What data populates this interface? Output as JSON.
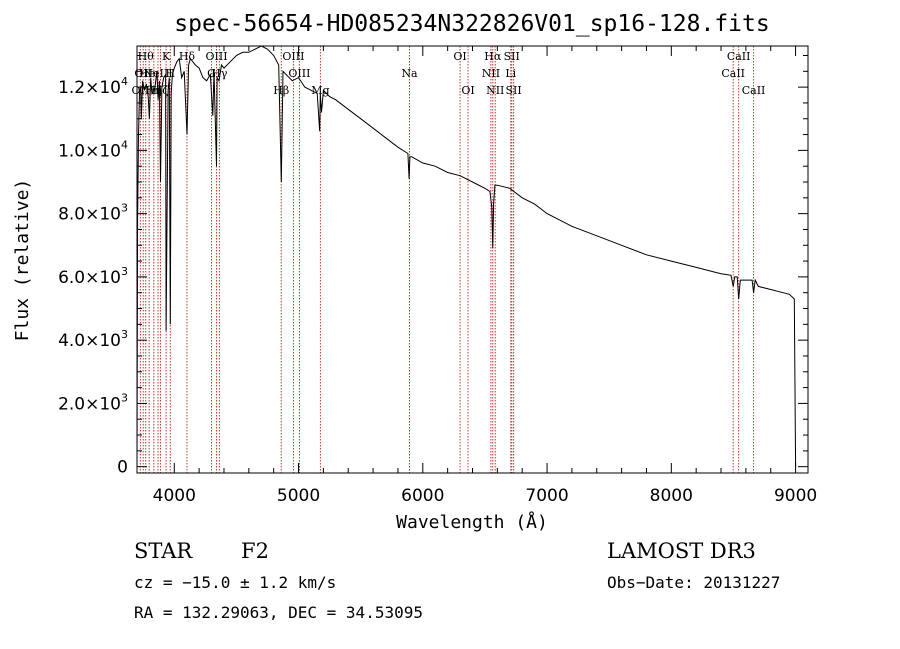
{
  "chart_data": {
    "type": "line",
    "title": "spec-56654-HD085234N322826V01_sp16-128.fits",
    "xlabel": "Wavelength (Å)",
    "ylabel": "Flux (relative)",
    "xlim": [
      3700,
      9100
    ],
    "ylim": [
      -200,
      13300
    ],
    "x_ticks": [
      {
        "value": 4000,
        "label": "4000"
      },
      {
        "value": 5000,
        "label": "5000"
      },
      {
        "value": 6000,
        "label": "6000"
      },
      {
        "value": 7000,
        "label": "7000"
      },
      {
        "value": 8000,
        "label": "8000"
      },
      {
        "value": 9000,
        "label": "9000"
      }
    ],
    "y_ticks": [
      {
        "value": 0,
        "label": "0",
        "exp": ""
      },
      {
        "value": 2000,
        "label": "2.0×10",
        "exp": "3"
      },
      {
        "value": 4000,
        "label": "4.0×10",
        "exp": "3"
      },
      {
        "value": 6000,
        "label": "6.0×10",
        "exp": "3"
      },
      {
        "value": 8000,
        "label": "8.0×10",
        "exp": "3"
      },
      {
        "value": 10000,
        "label": "1.0×10",
        "exp": "4"
      },
      {
        "value": 12000,
        "label": "1.2×10",
        "exp": "4"
      }
    ],
    "series": [
      {
        "name": "spectrum",
        "x": [
          3700,
          3705,
          3712,
          3720,
          3730,
          3735,
          3745,
          3760,
          3775,
          3790,
          3800,
          3810,
          3820,
          3835,
          3845,
          3860,
          3870,
          3880,
          3889,
          3900,
          3915,
          3930,
          3934,
          3950,
          3960,
          3968,
          3975,
          3985,
          4000,
          4020,
          4040,
          4060,
          4080,
          4102,
          4115,
          4130,
          4150,
          4170,
          4200,
          4230,
          4260,
          4290,
          4310,
          4320,
          4340,
          4345,
          4360,
          4380,
          4400,
          4450,
          4500,
          4550,
          4600,
          4650,
          4700,
          4750,
          4800,
          4840,
          4861,
          4875,
          4900,
          4950,
          5000,
          5050,
          5100,
          5150,
          5170,
          5175,
          5185,
          5200,
          5250,
          5300,
          5400,
          5500,
          5600,
          5700,
          5800,
          5880,
          5890,
          5896,
          5910,
          6000,
          6100,
          6200,
          6300,
          6400,
          6500,
          6540,
          6555,
          6563,
          6570,
          6580,
          6600,
          6700,
          6800,
          6900,
          7000,
          7200,
          7400,
          7600,
          7800,
          8000,
          8200,
          8400,
          8480,
          8498,
          8510,
          8530,
          8542,
          8555,
          8600,
          8650,
          8662,
          8675,
          8700,
          8800,
          8900,
          8950,
          8990,
          9000
        ],
        "y": [
          0,
          7800,
          10500,
          11800,
          12000,
          11000,
          12200,
          11900,
          12100,
          11700,
          11000,
          12300,
          11800,
          11900,
          12000,
          12500,
          11600,
          12200,
          9000,
          12000,
          12300,
          12400,
          4300,
          11900,
          12300,
          4500,
          11800,
          12400,
          12600,
          12800,
          12900,
          12300,
          12500,
          10500,
          12700,
          12900,
          12800,
          12700,
          12600,
          12300,
          12200,
          12400,
          11100,
          12500,
          9500,
          12300,
          12200,
          12700,
          12600,
          12800,
          13000,
          13100,
          13100,
          13200,
          13300,
          13200,
          13000,
          12700,
          9000,
          12500,
          12400,
          12200,
          12300,
          12000,
          11900,
          11800,
          10600,
          11800,
          11200,
          11900,
          11700,
          11600,
          11300,
          11000,
          10700,
          10400,
          10100,
          9900,
          9100,
          9800,
          9800,
          9600,
          9500,
          9300,
          9200,
          9000,
          8800,
          8700,
          8200,
          6900,
          8300,
          8900,
          8900,
          8800,
          8500,
          8300,
          8000,
          7600,
          7300,
          7000,
          6700,
          6500,
          6300,
          6100,
          6050,
          5700,
          6000,
          6000,
          5300,
          5900,
          5900,
          5900,
          5500,
          5900,
          5700,
          5600,
          5500,
          5450,
          5300,
          0
        ]
      }
    ],
    "line_markers": [
      {
        "wavelength": 3727,
        "label": "OII",
        "row": 2
      },
      {
        "wavelength": 3750,
        "label": "OII",
        "row": 1
      },
      {
        "wavelength": 3770,
        "label": "Hθ",
        "row": 0
      },
      {
        "wavelength": 3798,
        "label": "Heι",
        "row": 1
      },
      {
        "wavelength": 3835,
        "label": "Hη",
        "row": 2
      },
      {
        "wavelength": 3869,
        "label": "NeIII",
        "row": 1
      },
      {
        "wavelength": 3889,
        "label": "Hζ",
        "row": 2
      },
      {
        "wavelength": 3934,
        "label": "K",
        "row": 0
      },
      {
        "wavelength": 3968,
        "label": "H",
        "row": 1
      },
      {
        "wavelength": 4102,
        "label": "Hδ",
        "row": 0
      },
      {
        "wavelength": 4300,
        "label": "G",
        "row": 1
      },
      {
        "wavelength": 4340,
        "label": "OIII",
        "row": 0
      },
      {
        "wavelength": 4363,
        "label": "Hγ",
        "row": 1
      },
      {
        "wavelength": 4861,
        "label": "Hβ",
        "row": 2
      },
      {
        "wavelength": 4959,
        "label": "OIII",
        "row": 0
      },
      {
        "wavelength": 5007,
        "label": "OIII",
        "row": 1
      },
      {
        "wavelength": 5176,
        "label": "Mg",
        "row": 2
      },
      {
        "wavelength": 5893,
        "label": "Na",
        "row": 1
      },
      {
        "wavelength": 6300,
        "label": "OI",
        "row": 0
      },
      {
        "wavelength": 6364,
        "label": "OI",
        "row": 2
      },
      {
        "wavelength": 6548,
        "label": "NII",
        "row": 1
      },
      {
        "wavelength": 6563,
        "label": "Hα",
        "row": 0
      },
      {
        "wavelength": 6583,
        "label": "NII",
        "row": 2
      },
      {
        "wavelength": 6708,
        "label": "Li",
        "row": 1
      },
      {
        "wavelength": 6716,
        "label": "SII",
        "row": 0
      },
      {
        "wavelength": 6731,
        "label": "SII",
        "row": 2
      },
      {
        "wavelength": 8498,
        "label": "CaII",
        "row": 1
      },
      {
        "wavelength": 8542,
        "label": "CaII",
        "row": 0
      },
      {
        "wavelength": 8662,
        "label": "CaII",
        "row": 2
      }
    ]
  },
  "footer": {
    "class_label": "STAR",
    "subclass": "F2",
    "survey": "LAMOST DR3",
    "cz": "cz = −15.0 ± 1.2 km/s",
    "obs_date": "Obs−Date: 20131227",
    "radec": "RA = 132.29063, DEC =  34.53095"
  }
}
